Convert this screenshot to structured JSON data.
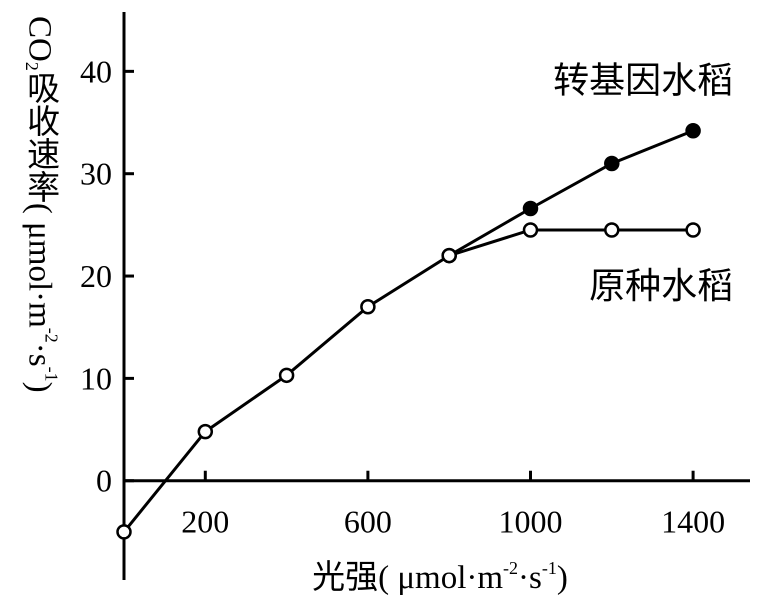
{
  "chart_data": {
    "type": "line",
    "x": [
      0,
      200,
      400,
      600,
      800,
      1000,
      1200,
      1400
    ],
    "series": [
      {
        "name": "原种水稻",
        "color": "#000000",
        "marker": "open",
        "values": [
          -5,
          4.8,
          10.3,
          17,
          22,
          24.5,
          24.5,
          24.5
        ]
      },
      {
        "name": "转基因水稻",
        "color": "#000000",
        "marker": "filled",
        "values": [
          null,
          null,
          null,
          null,
          22,
          26.6,
          31,
          34.2
        ]
      }
    ],
    "xlim": [
      0,
      1540
    ],
    "xticks": [
      200,
      600,
      1000,
      1400
    ],
    "ylim": [
      -9.7,
      45.8
    ],
    "yticks": [
      0,
      10,
      20,
      30,
      40
    ],
    "x_label": [
      {
        "text": "光强( μmol·m",
        "style": "normal"
      },
      {
        "text": "-2",
        "style": "sup"
      },
      {
        "text": "·s",
        "style": "normal"
      },
      {
        "text": "-1",
        "style": "sup"
      },
      {
        "text": ")",
        "style": "normal"
      }
    ],
    "y_label": [
      {
        "text": "CO",
        "style": "normal"
      },
      {
        "text": "2",
        "style": "sub"
      },
      {
        "text": "吸收速率( μmol·m",
        "style": "normal"
      },
      {
        "text": "-2",
        "style": "sup"
      },
      {
        "text": "·s",
        "style": "normal"
      },
      {
        "text": "-1",
        "style": "sup"
      },
      {
        "text": ")",
        "style": "normal"
      }
    ]
  }
}
